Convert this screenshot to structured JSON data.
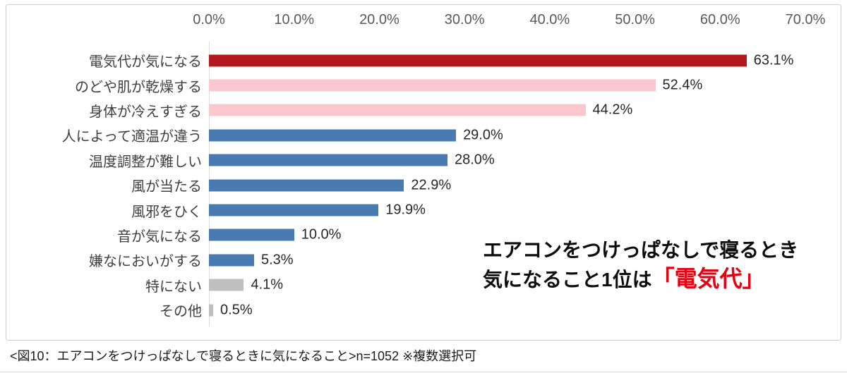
{
  "chart_data": {
    "type": "bar",
    "orientation": "horizontal",
    "title": "",
    "xlabel": "",
    "ylabel": "",
    "xlim": [
      0,
      70
    ],
    "x_ticks": [
      "0.0%",
      "10.0%",
      "20.0%",
      "30.0%",
      "40.0%",
      "50.0%",
      "60.0%",
      "70.0%"
    ],
    "grid": false,
    "legend": "none",
    "categories": [
      "電気代が気になる",
      "のどや肌が乾燥する",
      "身体が冷えすぎる",
      "人によって適温が違う",
      "温度調整が難しい",
      "風が当たる",
      "風邪をひく",
      "音が気になる",
      "嫌なにおいがする",
      "特にない",
      "その他"
    ],
    "values": [
      63.1,
      52.4,
      44.2,
      29.0,
      28.0,
      22.9,
      19.9,
      10.0,
      5.3,
      4.1,
      0.5
    ],
    "value_labels": [
      "63.1%",
      "52.4%",
      "44.2%",
      "29.0%",
      "28.0%",
      "22.9%",
      "19.9%",
      "10.0%",
      "5.3%",
      "4.1%",
      "0.5%"
    ],
    "bar_colors": [
      "#b2181e",
      "#f8c8ce",
      "#f8c8ce",
      "#4a7ab2",
      "#4a7ab2",
      "#4a7ab2",
      "#4a7ab2",
      "#4a7ab2",
      "#4a7ab2",
      "#bfbfbf",
      "#bfbfbf"
    ]
  },
  "annotation": {
    "line1": "エアコンをつけっぱなしで寝るとき",
    "line2_prefix": "気になること1位は",
    "line2_highlight": "「電気代」",
    "highlight_color": "#e50012"
  },
  "caption": "<図10：エアコンをつけっぱなしで寝るときに気になること>n=1052 ※複数選択可",
  "colors": {
    "top_bar_red": "#b2181e",
    "pink": "#f8c8ce",
    "blue": "#4a7ab2",
    "gray": "#bfbfbf",
    "axis_text": "#595959",
    "border": "#c9cdd2"
  }
}
